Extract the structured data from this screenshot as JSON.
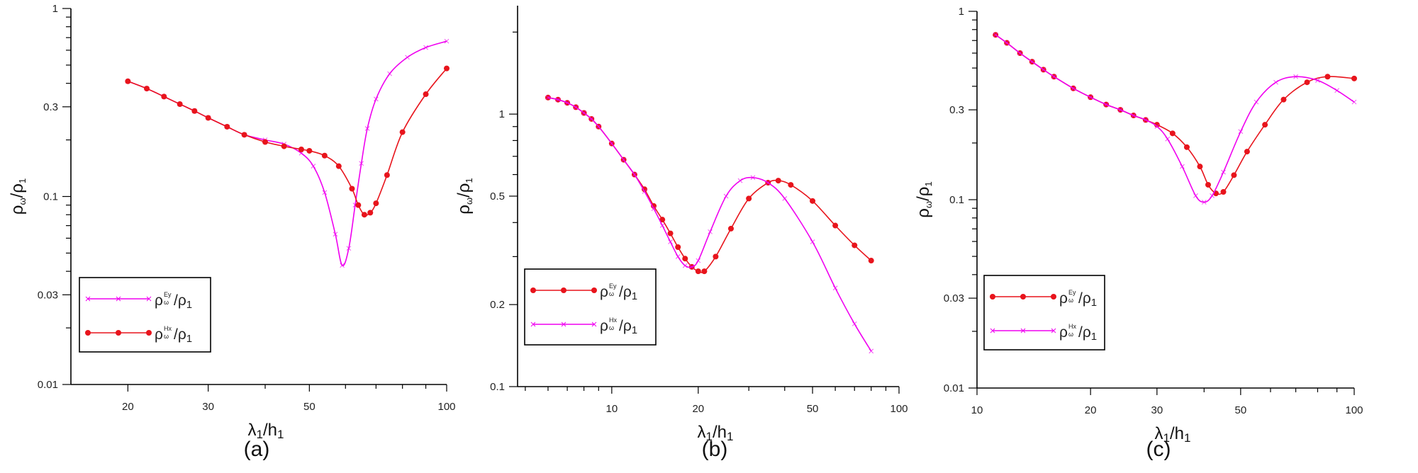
{
  "colors": {
    "red": "#e8141c",
    "magenta": "#f000f0",
    "axis": "#000000"
  },
  "chart_data": [
    {
      "type": "line",
      "panel_label": "(a)",
      "xscale": "log",
      "yscale": "log",
      "xlim": [
        15,
        100
      ],
      "ylim": [
        0.01,
        1
      ],
      "xticks": [
        20,
        30,
        50,
        100
      ],
      "yticks": [
        0.01,
        0.03,
        0.1,
        0.3,
        1
      ],
      "xlabel_main": "λ",
      "xlabel_sub": "1",
      "xlabel_rest": "/h",
      "xlabel_sub2": "1",
      "ylabel_main": "ρ",
      "ylabel_sub": "ω",
      "ylabel_rest": "/ρ",
      "ylabel_sub2": "1",
      "legend": {
        "placement": "bottom-left"
      },
      "series": [
        {
          "label_main": "ρ",
          "label_sup": "Ey",
          "label_sub": "ω",
          "label_rest": "/ρ",
          "label_sub2": "1",
          "color": "magenta",
          "marker": "x",
          "x": [
            20,
            22,
            24,
            26,
            28,
            30,
            33,
            36,
            40,
            44,
            48,
            51,
            54,
            57,
            59,
            61,
            63,
            65,
            67,
            70,
            75,
            82,
            90,
            100
          ],
          "y": [
            0.41,
            0.375,
            0.34,
            0.31,
            0.285,
            0.262,
            0.235,
            0.213,
            0.2,
            0.19,
            0.17,
            0.145,
            0.105,
            0.063,
            0.043,
            0.053,
            0.09,
            0.15,
            0.23,
            0.33,
            0.45,
            0.55,
            0.62,
            0.67
          ]
        },
        {
          "label_main": "ρ",
          "label_sup": "Hx",
          "label_sub": "ω",
          "label_rest": "/ρ",
          "label_sub2": "1",
          "color": "red",
          "marker": "dot",
          "x": [
            20,
            22,
            24,
            26,
            28,
            30,
            33,
            36,
            40,
            44,
            48,
            50,
            54,
            58,
            62,
            64,
            66,
            68,
            70,
            74,
            80,
            90,
            100
          ],
          "y": [
            0.41,
            0.375,
            0.34,
            0.31,
            0.285,
            0.262,
            0.235,
            0.213,
            0.195,
            0.185,
            0.178,
            0.175,
            0.165,
            0.145,
            0.11,
            0.09,
            0.08,
            0.082,
            0.092,
            0.13,
            0.22,
            0.35,
            0.48
          ]
        }
      ]
    },
    {
      "type": "line",
      "panel_label": "(b)",
      "xscale": "log",
      "yscale": "log",
      "xlim": [
        4.7,
        100
      ],
      "ylim": [
        0.1,
        2.5
      ],
      "xticks": [
        10,
        20,
        50,
        100
      ],
      "yticks": [
        0.1,
        0.2,
        0.5,
        1
      ],
      "xlabel_main": "λ",
      "xlabel_sub": "1",
      "xlabel_rest": "/h",
      "xlabel_sub2": "1",
      "ylabel_main": "ρ",
      "ylabel_sub": "ω",
      "ylabel_rest": "/ρ",
      "ylabel_sub2": "1",
      "legend": {
        "placement": "bottom-left"
      },
      "series": [
        {
          "label_main": "ρ",
          "label_sup": "Ey",
          "label_sub": "ω",
          "label_rest": "/ρ",
          "label_sub2": "1",
          "color": "red",
          "marker": "dot",
          "x": [
            6,
            6.5,
            7,
            7.5,
            8,
            8.5,
            9,
            10,
            11,
            12,
            13,
            14,
            15,
            16,
            17,
            18,
            19,
            20,
            21,
            23,
            26,
            30,
            35,
            38,
            42,
            50,
            60,
            70,
            80
          ],
          "y": [
            1.15,
            1.13,
            1.1,
            1.06,
            1.01,
            0.96,
            0.9,
            0.78,
            0.68,
            0.6,
            0.53,
            0.46,
            0.41,
            0.365,
            0.325,
            0.295,
            0.275,
            0.265,
            0.265,
            0.3,
            0.38,
            0.49,
            0.56,
            0.57,
            0.55,
            0.48,
            0.39,
            0.33,
            0.29
          ]
        },
        {
          "label_main": "ρ",
          "label_sup": "Hx",
          "label_sub": "ω",
          "label_rest": "/ρ",
          "label_sub2": "1",
          "color": "magenta",
          "marker": "x",
          "x": [
            6,
            6.5,
            7,
            7.5,
            8,
            8.5,
            9,
            10,
            11,
            12,
            13,
            14,
            15,
            16,
            17,
            18,
            19,
            20,
            22,
            25,
            28,
            31,
            35,
            40,
            50,
            60,
            70,
            80
          ],
          "y": [
            1.15,
            1.13,
            1.1,
            1.06,
            1.01,
            0.96,
            0.9,
            0.78,
            0.68,
            0.6,
            0.52,
            0.45,
            0.39,
            0.34,
            0.3,
            0.278,
            0.275,
            0.29,
            0.37,
            0.5,
            0.57,
            0.585,
            0.56,
            0.49,
            0.34,
            0.23,
            0.17,
            0.135
          ]
        }
      ]
    },
    {
      "type": "line",
      "panel_label": "(c)",
      "xscale": "log",
      "yscale": "log",
      "xlim": [
        10,
        100
      ],
      "ylim": [
        0.01,
        1
      ],
      "xticks": [
        10,
        20,
        30,
        50,
        100
      ],
      "yticks": [
        0.01,
        0.03,
        0.1,
        0.3,
        1
      ],
      "xlabel_main": "λ",
      "xlabel_sub": "1",
      "xlabel_rest": "/h",
      "xlabel_sub2": "1",
      "ylabel_main": "ρ",
      "ylabel_sub": "ω",
      "ylabel_rest": "/ρ",
      "ylabel_sub2": "1",
      "legend": {
        "placement": "bottom-left"
      },
      "series": [
        {
          "label_main": "ρ",
          "label_sup": "Ey",
          "label_sub": "ω",
          "label_rest": "/ρ",
          "label_sub2": "1",
          "color": "red",
          "marker": "dot",
          "x": [
            11.2,
            12,
            13,
            14,
            15,
            16,
            18,
            20,
            22,
            24,
            26,
            28,
            30,
            33,
            36,
            39,
            41,
            43,
            45,
            48,
            52,
            58,
            65,
            75,
            85,
            100
          ],
          "y": [
            0.75,
            0.68,
            0.6,
            0.54,
            0.49,
            0.45,
            0.39,
            0.35,
            0.32,
            0.3,
            0.28,
            0.265,
            0.25,
            0.225,
            0.19,
            0.15,
            0.12,
            0.108,
            0.11,
            0.135,
            0.18,
            0.25,
            0.34,
            0.42,
            0.45,
            0.44
          ]
        },
        {
          "label_main": "ρ",
          "label_sup": "Hx",
          "label_sub": "ω",
          "label_rest": "/ρ",
          "label_sub2": "1",
          "color": "magenta",
          "marker": "x",
          "x": [
            11.2,
            12,
            13,
            14,
            15,
            16,
            18,
            20,
            22,
            24,
            26,
            28,
            30,
            32,
            35,
            38,
            40,
            42,
            45,
            50,
            55,
            62,
            70,
            80,
            90,
            100
          ],
          "y": [
            0.75,
            0.68,
            0.6,
            0.54,
            0.49,
            0.45,
            0.39,
            0.35,
            0.32,
            0.3,
            0.28,
            0.265,
            0.245,
            0.21,
            0.15,
            0.105,
            0.097,
            0.105,
            0.14,
            0.23,
            0.33,
            0.42,
            0.45,
            0.43,
            0.38,
            0.33
          ]
        }
      ]
    }
  ]
}
